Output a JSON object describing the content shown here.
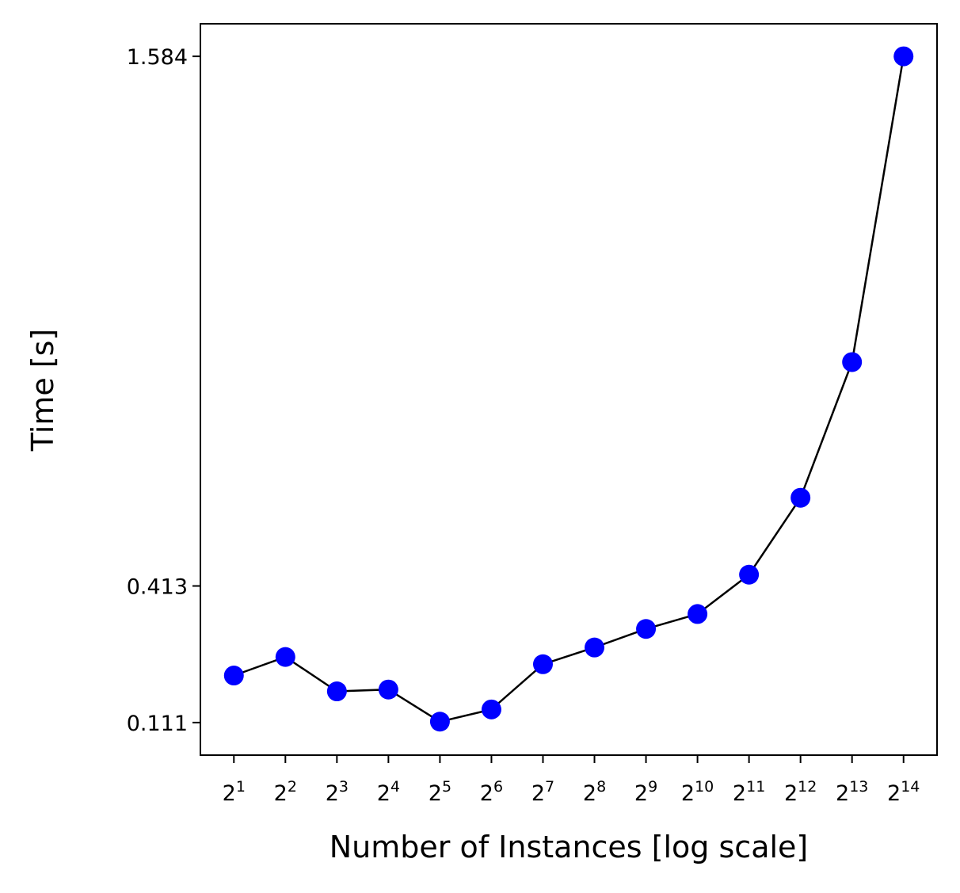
{
  "chart_data": {
    "type": "line",
    "xlabel": "Number of Instances [log scale]",
    "ylabel": "Time [s]",
    "x_scale": "log2",
    "x_tick_base": "2",
    "x_tick_exponents": [
      "1",
      "2",
      "3",
      "4",
      "5",
      "6",
      "7",
      "8",
      "9",
      "10",
      "11",
      "12",
      "13",
      "14"
    ],
    "x": [
      2,
      4,
      8,
      16,
      32,
      64,
      128,
      256,
      512,
      1024,
      2048,
      4096,
      8192,
      16384
    ],
    "y_ticks": [
      0.111,
      0.413,
      1.584
    ],
    "y_tick_labels": [
      "0.111",
      "0.413",
      "1.584"
    ],
    "ylim": [
      0.039,
      1.656
    ],
    "series": [
      {
        "values": [
          0.215,
          0.256,
          0.18,
          0.184,
          0.113,
          0.14,
          0.24,
          0.277,
          0.318,
          0.351,
          0.438,
          0.608,
          0.908,
          1.584
        ],
        "marker_color": "#0000ff",
        "line_color": "#000000"
      }
    ],
    "grid": false,
    "legend": "none"
  }
}
